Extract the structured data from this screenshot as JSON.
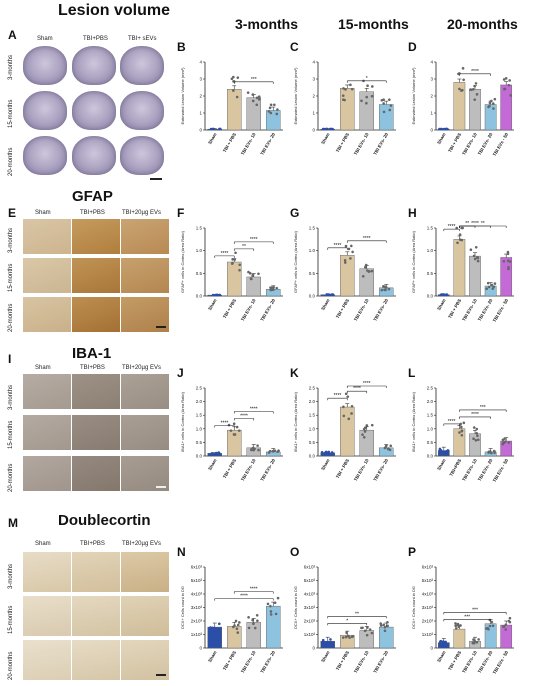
{
  "columns": [
    "3-months",
    "15-months",
    "20-months"
  ],
  "sections": [
    {
      "key": "A",
      "title": "Lesion volume",
      "headers": [
        "Sham",
        "TBI+PBS",
        "TBI+ sEVs"
      ],
      "rows": [
        "3-months",
        "15-months",
        "20-months"
      ]
    },
    {
      "key": "E",
      "title": "GFAP",
      "headers": [
        "Sham",
        "TBI+PBS",
        "TBI+20µg EVs"
      ],
      "rows": [
        "3-months",
        "15-months",
        "20-months"
      ]
    },
    {
      "key": "I",
      "title": "IBA-1",
      "headers": [
        "Sham",
        "TBI+PBS",
        "TBI+20µg EVs"
      ],
      "rows": [
        "3-months",
        "15-months",
        "20-months"
      ]
    },
    {
      "key": "M",
      "title": "Doublecortin",
      "headers": [
        "Sham",
        "TBI+PBS",
        "TBI+20µg EVs"
      ],
      "rows": [
        "3-months",
        "15-months",
        "20-months"
      ]
    }
  ],
  "chart_data": [
    {
      "panel": "B",
      "type": "bar",
      "ylabel": "Estimated Lesion Volume (mm³)",
      "ylim": [
        0,
        4
      ],
      "yticks": [
        "0",
        "1",
        "2",
        "3",
        "4"
      ],
      "categories": [
        "Sham",
        "TBI + PBS",
        "TBI EVs- 10",
        "TBI EVs- 20"
      ],
      "values": [
        0.05,
        2.4,
        1.9,
        1.15
      ],
      "colors": [
        "#2b4fa8",
        "#d9c6a0",
        "#bdbdbd",
        "#8ec3e0"
      ],
      "sig": [
        {
          "from": 1,
          "to": 3,
          "label": "***"
        }
      ]
    },
    {
      "panel": "C",
      "type": "bar",
      "ylabel": "Estimated Lesion Volume (mm³)",
      "ylim": [
        0,
        4
      ],
      "yticks": [
        "0",
        "1",
        "2",
        "3",
        "4"
      ],
      "categories": [
        "Sham",
        "TBI + PBS",
        "TBI EVs- 10",
        "TBI EVs- 20"
      ],
      "values": [
        0.05,
        2.45,
        2.25,
        1.5
      ],
      "colors": [
        "#2b4fa8",
        "#d9c6a0",
        "#bdbdbd",
        "#8ec3e0"
      ],
      "sig": [
        {
          "from": 1,
          "to": 3,
          "label": "*"
        }
      ]
    },
    {
      "panel": "D",
      "type": "bar",
      "ylabel": "Estimated Lesion Volume (mm³)",
      "ylim": [
        0,
        4
      ],
      "yticks": [
        "0",
        "1",
        "2",
        "3",
        "4"
      ],
      "categories": [
        "Sham",
        "TBI + PBS",
        "TBI EVs- 10",
        "TBI EVs- 20",
        "TBI EVs - 50"
      ],
      "values": [
        0.05,
        2.8,
        2.4,
        1.5,
        2.65
      ],
      "colors": [
        "#2b4fa8",
        "#d9c6a0",
        "#bdbdbd",
        "#8ec3e0",
        "#c46ad6"
      ],
      "sig": [
        {
          "from": 1,
          "to": 3,
          "label": "****"
        }
      ]
    },
    {
      "panel": "F",
      "type": "bar",
      "ylabel": "GFAP+ cells in Cortex (Area Ratio)",
      "ylim": [
        0,
        1.5
      ],
      "yticks": [
        "0.0",
        "0.5",
        "1.0",
        "1.5"
      ],
      "categories": [
        "Sham",
        "TBI + PBS",
        "TBI EVs- 10",
        "TBI EVs- 20"
      ],
      "values": [
        0.02,
        0.75,
        0.42,
        0.15
      ],
      "colors": [
        "#2b4fa8",
        "#d9c6a0",
        "#bdbdbd",
        "#8ec3e0"
      ],
      "sig": [
        {
          "from": 0,
          "to": 1,
          "label": "****"
        },
        {
          "from": 1,
          "to": 2,
          "label": "**"
        },
        {
          "from": 1,
          "to": 3,
          "label": "****"
        }
      ]
    },
    {
      "panel": "G",
      "type": "bar",
      "ylabel": "GFAP+ cells in Cortex (Area Ratio)",
      "ylim": [
        0,
        1.5
      ],
      "yticks": [
        "0.0",
        "0.5",
        "1.0",
        "1.5"
      ],
      "categories": [
        "Sham",
        "TBI + PBS",
        "TBI EVs- 10",
        "TBI EVs- 20"
      ],
      "values": [
        0.03,
        0.9,
        0.6,
        0.18
      ],
      "colors": [
        "#2b4fa8",
        "#d9c6a0",
        "#bdbdbd",
        "#8ec3e0"
      ],
      "sig": [
        {
          "from": 0,
          "to": 1,
          "label": "****"
        },
        {
          "from": 1,
          "to": 3,
          "label": "****"
        }
      ]
    },
    {
      "panel": "H",
      "type": "bar",
      "ylabel": "GFAP+ cells in Cortex (Area Ratio)",
      "ylim": [
        0,
        1.5
      ],
      "yticks": [
        "0.0",
        "0.5",
        "1.0",
        "1.5"
      ],
      "categories": [
        "Sham",
        "TBI + PBS",
        "TBI EVs- 10",
        "TBI EVs- 20",
        "TBI EVs - 50"
      ],
      "values": [
        0.03,
        1.25,
        0.88,
        0.22,
        0.85
      ],
      "colors": [
        "#2b4fa8",
        "#d9c6a0",
        "#bdbdbd",
        "#8ec3e0",
        "#c46ad6"
      ],
      "sig": [
        {
          "from": 0,
          "to": 1,
          "label": "****"
        },
        {
          "from": 1,
          "to": 2,
          "label": "**"
        },
        {
          "from": 1,
          "to": 3,
          "label": "****"
        },
        {
          "from": 1,
          "to": 4,
          "label": "**"
        }
      ]
    },
    {
      "panel": "J",
      "type": "bar",
      "ylabel": "IBA1+ cells in Cortex (Area Ratio)",
      "ylim": [
        0,
        2.5
      ],
      "yticks": [
        "0.0",
        "0.5",
        "1.0",
        "1.5",
        "2.0",
        "2.5"
      ],
      "categories": [
        "Sham",
        "TBI + PBS",
        "TBI EVs- 10",
        "TBI EVs- 20"
      ],
      "values": [
        0.1,
        0.95,
        0.3,
        0.15
      ],
      "colors": [
        "#2b4fa8",
        "#d9c6a0",
        "#bdbdbd",
        "#8ec3e0"
      ],
      "sig": [
        {
          "from": 0,
          "to": 1,
          "label": "****"
        },
        {
          "from": 1,
          "to": 2,
          "label": "****"
        },
        {
          "from": 1,
          "to": 3,
          "label": "****"
        }
      ]
    },
    {
      "panel": "K",
      "type": "bar",
      "ylabel": "IBA1+ cells in Cortex (Area Ratio)",
      "ylim": [
        0,
        2.5
      ],
      "yticks": [
        "0.0",
        "0.5",
        "1.0",
        "1.5",
        "2.0",
        "2.5"
      ],
      "categories": [
        "Sham",
        "TBI + PBS",
        "TBI EVs- 10",
        "TBI EVs- 20"
      ],
      "values": [
        0.12,
        1.8,
        0.95,
        0.3
      ],
      "colors": [
        "#2b4fa8",
        "#d9c6a0",
        "#bdbdbd",
        "#8ec3e0"
      ],
      "sig": [
        {
          "from": 0,
          "to": 1,
          "label": "****"
        },
        {
          "from": 1,
          "to": 2,
          "label": "****"
        },
        {
          "from": 1,
          "to": 3,
          "label": "****"
        }
      ]
    },
    {
      "panel": "L",
      "type": "bar",
      "ylabel": "IBA1+ cells in Cortex (Area Ratio)",
      "ylim": [
        0,
        2.5
      ],
      "yticks": [
        "0.0",
        "0.5",
        "1.0",
        "1.5",
        "2.0",
        "2.5"
      ],
      "categories": [
        "Sham",
        "TBI+PBS",
        "TBI EVs- 10",
        "TBI EVs- 20",
        "TBI EVs - 50"
      ],
      "values": [
        0.2,
        1.0,
        0.82,
        0.15,
        0.55
      ],
      "colors": [
        "#2b4fa8",
        "#d9c6a0",
        "#bdbdbd",
        "#8ec3e0",
        "#c46ad6"
      ],
      "sig": [
        {
          "from": 0,
          "to": 1,
          "label": "****"
        },
        {
          "from": 1,
          "to": 3,
          "label": "****"
        },
        {
          "from": 1,
          "to": 4,
          "label": "***"
        }
      ]
    },
    {
      "panel": "N",
      "type": "bar",
      "ylabel": "DCX+ Cells count in DG",
      "ylim": [
        0,
        6000
      ],
      "yticks": [
        "0",
        "1x10³",
        "2x10³",
        "3x10³",
        "4x10³",
        "5x10³",
        "6x10³"
      ],
      "categories": [
        "Sham",
        "TBI + PBS",
        "TBI EVs- 10",
        "TBI EVs- 20"
      ],
      "values": [
        1550,
        1600,
        1900,
        3100
      ],
      "colors": [
        "#2b4fa8",
        "#d9c6a0",
        "#bdbdbd",
        "#8ec3e0"
      ],
      "sig": [
        {
          "from": 0,
          "to": 3,
          "label": "****"
        },
        {
          "from": 1,
          "to": 3,
          "label": "****"
        }
      ]
    },
    {
      "panel": "O",
      "type": "bar",
      "ylabel": "DCX+ Cells count in DG",
      "ylim": [
        0,
        6000
      ],
      "yticks": [
        "0",
        "1x10³",
        "2x10³",
        "3x10³",
        "4x10³",
        "5x10³",
        "6x10³"
      ],
      "categories": [
        "Sham",
        "TBI + PBS",
        "TBI EVs- 10",
        "TBI EVs- 20"
      ],
      "values": [
        500,
        950,
        1300,
        1550
      ],
      "colors": [
        "#2b4fa8",
        "#d9c6a0",
        "#bdbdbd",
        "#8ec3e0"
      ],
      "sig": [
        {
          "from": 0,
          "to": 2,
          "label": "*"
        },
        {
          "from": 0,
          "to": 3,
          "label": "**"
        }
      ]
    },
    {
      "panel": "P",
      "type": "bar",
      "ylabel": "DCX+ Cells count in DG",
      "ylim": [
        0,
        6000
      ],
      "yticks": [
        "0",
        "1x10³",
        "2x10³",
        "3x10³",
        "4x10³",
        "5x10³",
        "6x10³"
      ],
      "categories": [
        "Sham",
        "TBI + PBS",
        "TBI EVs- 10",
        "TBI EVs- 20",
        "TBI EVs - 50"
      ],
      "values": [
        400,
        1400,
        500,
        1800,
        1700
      ],
      "colors": [
        "#2b4fa8",
        "#d9c6a0",
        "#bdbdbd",
        "#8ec3e0",
        "#c46ad6"
      ],
      "sig": [
        {
          "from": 0,
          "to": 3,
          "label": "***"
        },
        {
          "from": 0,
          "to": 4,
          "label": "***"
        }
      ]
    }
  ]
}
